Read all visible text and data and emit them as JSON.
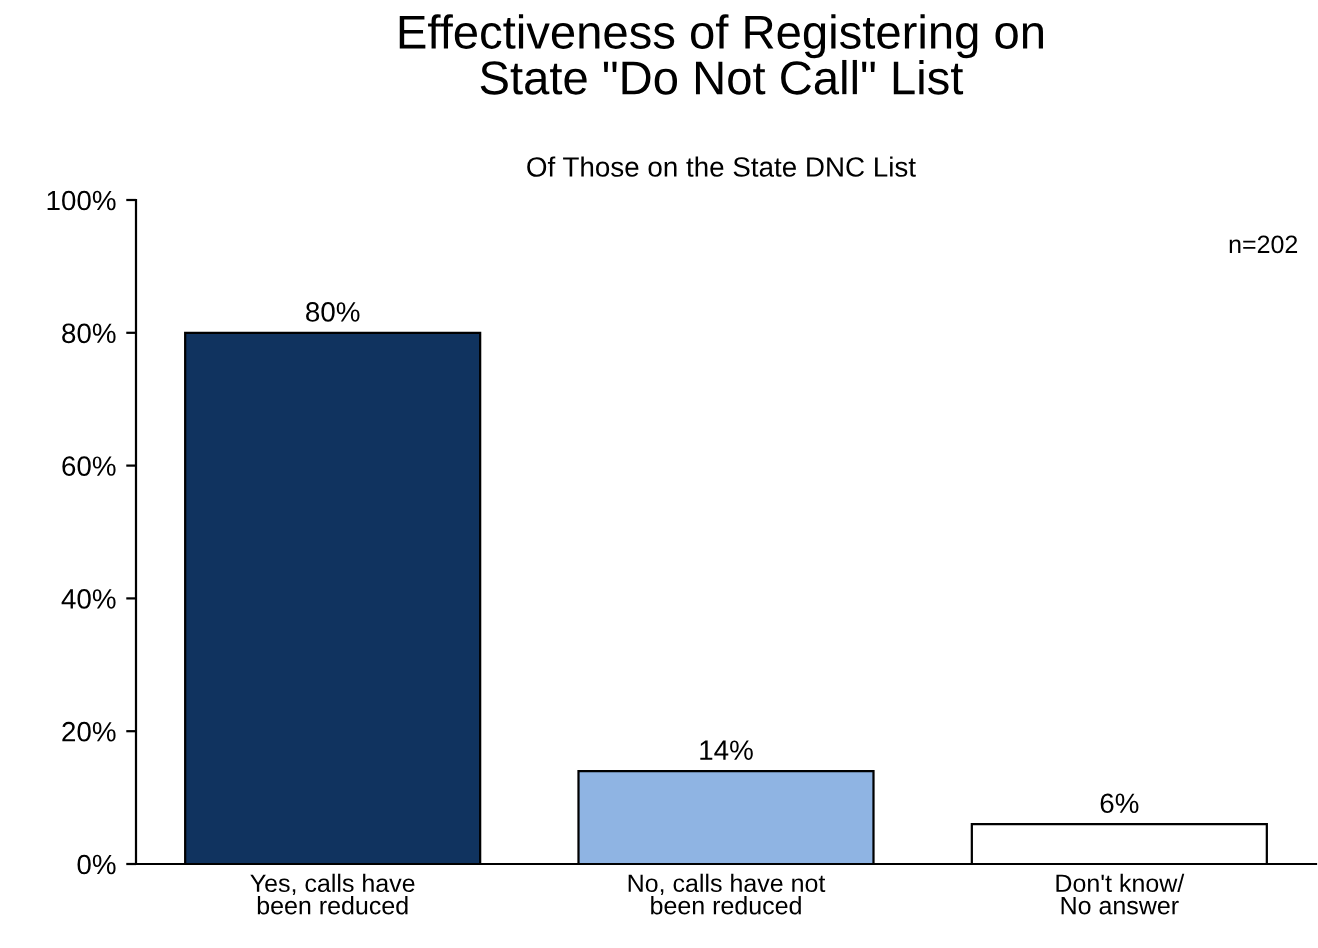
{
  "chart_data": {
    "type": "bar",
    "title": "Effectiveness of Registering on\nState \"Do Not Call\" List",
    "subtitle": "Of Those on the State DNC List",
    "categories": [
      "Yes, calls have\nbeen reduced",
      "No, calls have not\nbeen reduced",
      "Don't know/\nNo answer"
    ],
    "values": [
      80,
      14,
      6
    ],
    "value_labels": [
      "80%",
      "14%",
      "6%"
    ],
    "colors": [
      "#10335f",
      "#8fb4e3",
      "#ffffff"
    ],
    "ylim": [
      0,
      100
    ],
    "yticks": [
      {
        "value": 0,
        "label": "0%"
      },
      {
        "value": 20,
        "label": "20%"
      },
      {
        "value": 40,
        "label": "40%"
      },
      {
        "value": 60,
        "label": "60%"
      },
      {
        "value": 80,
        "label": "80%"
      },
      {
        "value": 100,
        "label": "100%"
      }
    ],
    "annotations": [
      "n=202"
    ],
    "grid": false,
    "legend": false
  }
}
